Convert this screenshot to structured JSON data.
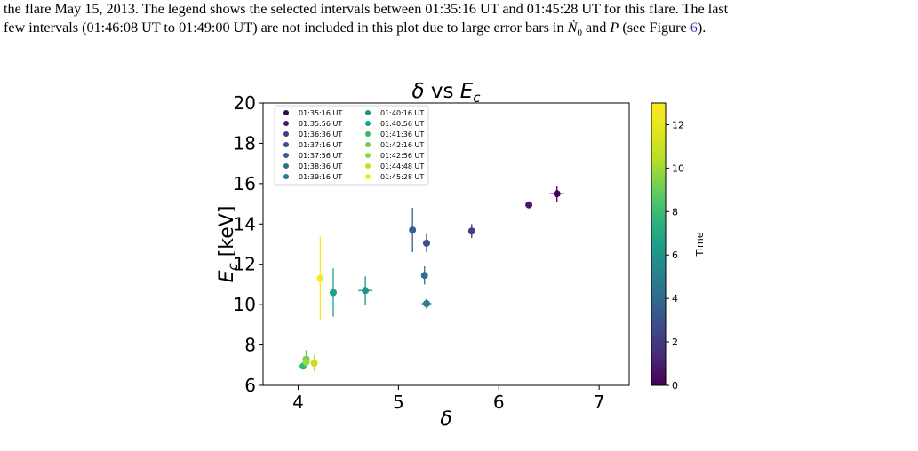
{
  "caption": {
    "line1": "the flare May 15, 2013. The legend shows the selected intervals between 01:35:16 UT and 01:45:28 UT for this flare. The last",
    "line2_pre": "few intervals (01:46:08 UT to 01:49:00 UT) are not included in this plot due to large error bars in ",
    "line2_sym": "Ṅ",
    "line2_sub": "0",
    "line2_mid": " and ",
    "line2_P": "P",
    "line2_see": " (see Figure ",
    "line2_ref": "6",
    "line2_end": ")."
  },
  "chart_data": {
    "type": "scatter",
    "title": "δ vs E_c",
    "xlabel": "δ",
    "ylabel": "E_c [keV]",
    "xlim": [
      3.65,
      7.3
    ],
    "ylim": [
      6,
      20
    ],
    "xticks": [
      4,
      5,
      6,
      7
    ],
    "yticks": [
      6,
      8,
      10,
      12,
      14,
      16,
      18,
      20
    ],
    "legend_position": "top-left",
    "colorbar": {
      "label": "Time",
      "range": [
        0,
        13
      ],
      "ticks": [
        0,
        2,
        4,
        6,
        8,
        10,
        12
      ]
    },
    "points": [
      {
        "label": "01:35:16 UT",
        "color": "#440154",
        "x": 6.58,
        "y": 15.5,
        "xerr": 0.07,
        "yerr": 0.4
      },
      {
        "label": "01:35:56 UT",
        "color": "#48186a",
        "x": 6.3,
        "y": 14.95,
        "xerr": 0.0,
        "yerr": 0.0
      },
      {
        "label": "01:36:36 UT",
        "color": "#433d84",
        "x": 5.73,
        "y": 13.65,
        "xerr": 0.0,
        "yerr": 0.35
      },
      {
        "label": "01:37:16 UT",
        "color": "#3c4f8a",
        "x": 5.28,
        "y": 13.05,
        "xerr": 0.0,
        "yerr": 0.45
      },
      {
        "label": "01:37:56 UT",
        "color": "#355e8d",
        "x": 5.14,
        "y": 13.7,
        "xerr": 0.0,
        "yerr": 1.1
      },
      {
        "label": "01:38:36 UT",
        "color": "#2e6f8e",
        "x": 5.26,
        "y": 11.45,
        "xerr": 0.0,
        "yerr": 0.45
      },
      {
        "label": "01:39:16 UT",
        "color": "#287d8e",
        "x": 5.28,
        "y": 10.05,
        "xerr": 0.05,
        "yerr": 0.25
      },
      {
        "label": "01:40:16 UT",
        "color": "#21918c",
        "x": 4.67,
        "y": 10.7,
        "xerr": 0.07,
        "yerr": 0.7
      },
      {
        "label": "01:40:56 UT",
        "color": "#1fa088",
        "x": 4.35,
        "y": 10.6,
        "xerr": 0.0,
        "yerr": 1.2
      },
      {
        "label": "01:41:36 UT",
        "color": "#35b779",
        "x": 4.05,
        "y": 6.95,
        "xerr": 0.04,
        "yerr": 0.1
      },
      {
        "label": "01:42:16 UT",
        "color": "#6ece58",
        "x": 4.08,
        "y": 7.3,
        "xerr": 0.0,
        "yerr": 0.45
      },
      {
        "label": "01:42:56 UT",
        "color": "#95d840",
        "x": 4.08,
        "y": 7.15,
        "xerr": 0.0,
        "yerr": 0.15
      },
      {
        "label": "01:44:48 UT",
        "color": "#c2df23",
        "x": 4.16,
        "y": 7.1,
        "xerr": 0.0,
        "yerr": 0.4
      },
      {
        "label": "01:45:28 UT",
        "color": "#fde725",
        "x": 4.22,
        "y": 11.3,
        "xerr": 0.0,
        "yerr": 2.1
      }
    ]
  }
}
